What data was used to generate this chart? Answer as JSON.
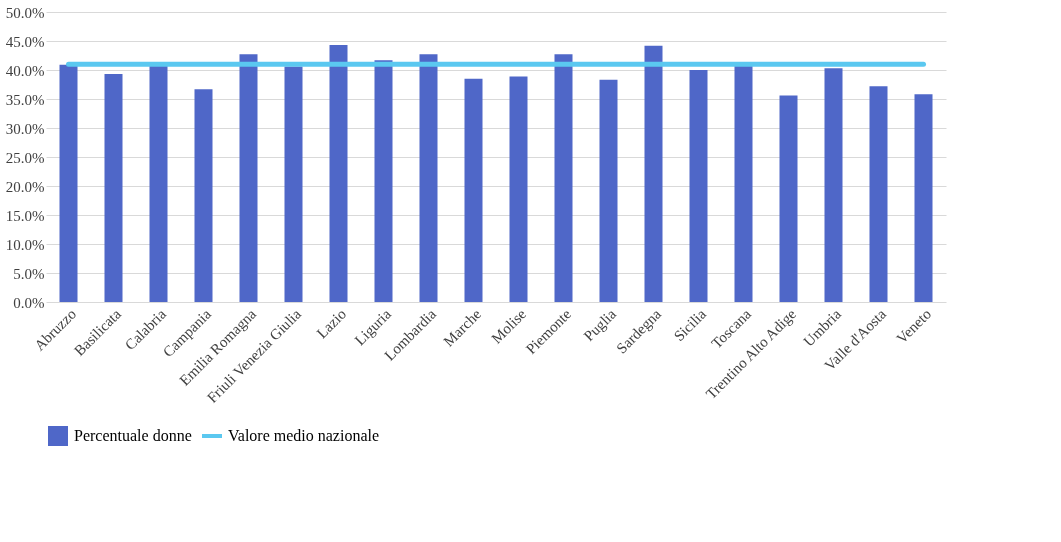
{
  "chart_data": {
    "type": "bar",
    "categories": [
      "Abruzzo",
      "Basilicata",
      "Calabria",
      "Campania",
      "Emilia Romagna",
      "Friuli Venezia Giulia",
      "Lazio",
      "Liguria",
      "Lombardia",
      "Marche",
      "Molise",
      "Piemonte",
      "Puglia",
      "Sardegna",
      "Sicilia",
      "Toscana",
      "Trentino Alto Adige",
      "Umbria",
      "Valle d'Aosta",
      "Veneto"
    ],
    "series": [
      {
        "name": "Percentuale donne",
        "color": "#4f67c8",
        "values": [
          40.9,
          39.3,
          40.8,
          36.7,
          42.7,
          40.6,
          44.3,
          41.7,
          42.7,
          38.5,
          38.9,
          42.7,
          38.3,
          44.2,
          40.0,
          41.0,
          35.6,
          40.3,
          37.2,
          35.8
        ]
      },
      {
        "name": "Valore medio nazionale",
        "type": "line",
        "color": "#5bc8f0",
        "values": [
          41.0,
          41.0,
          41.0,
          41.0,
          41.0,
          41.0,
          41.0,
          41.0,
          41.0,
          41.0,
          41.0,
          41.0,
          41.0,
          41.0,
          41.0,
          41.0,
          41.0,
          41.0,
          41.0,
          41.0
        ]
      }
    ],
    "ylim": [
      0,
      50
    ],
    "yticks": [
      {
        "value": 0,
        "label": "0.0%"
      },
      {
        "value": 5,
        "label": "5.0%"
      },
      {
        "value": 10,
        "label": "10.0%"
      },
      {
        "value": 15,
        "label": "15.0%"
      },
      {
        "value": 20,
        "label": "20.0%"
      },
      {
        "value": 25,
        "label": "25.0%"
      },
      {
        "value": 30,
        "label": "30.0%"
      },
      {
        "value": 35,
        "label": "35.0%"
      },
      {
        "value": 40,
        "label": "40.0%"
      },
      {
        "value": 45,
        "label": "45.0%"
      },
      {
        "value": 50,
        "label": "50.0%"
      }
    ],
    "grid": "y",
    "legend": "bottom"
  }
}
